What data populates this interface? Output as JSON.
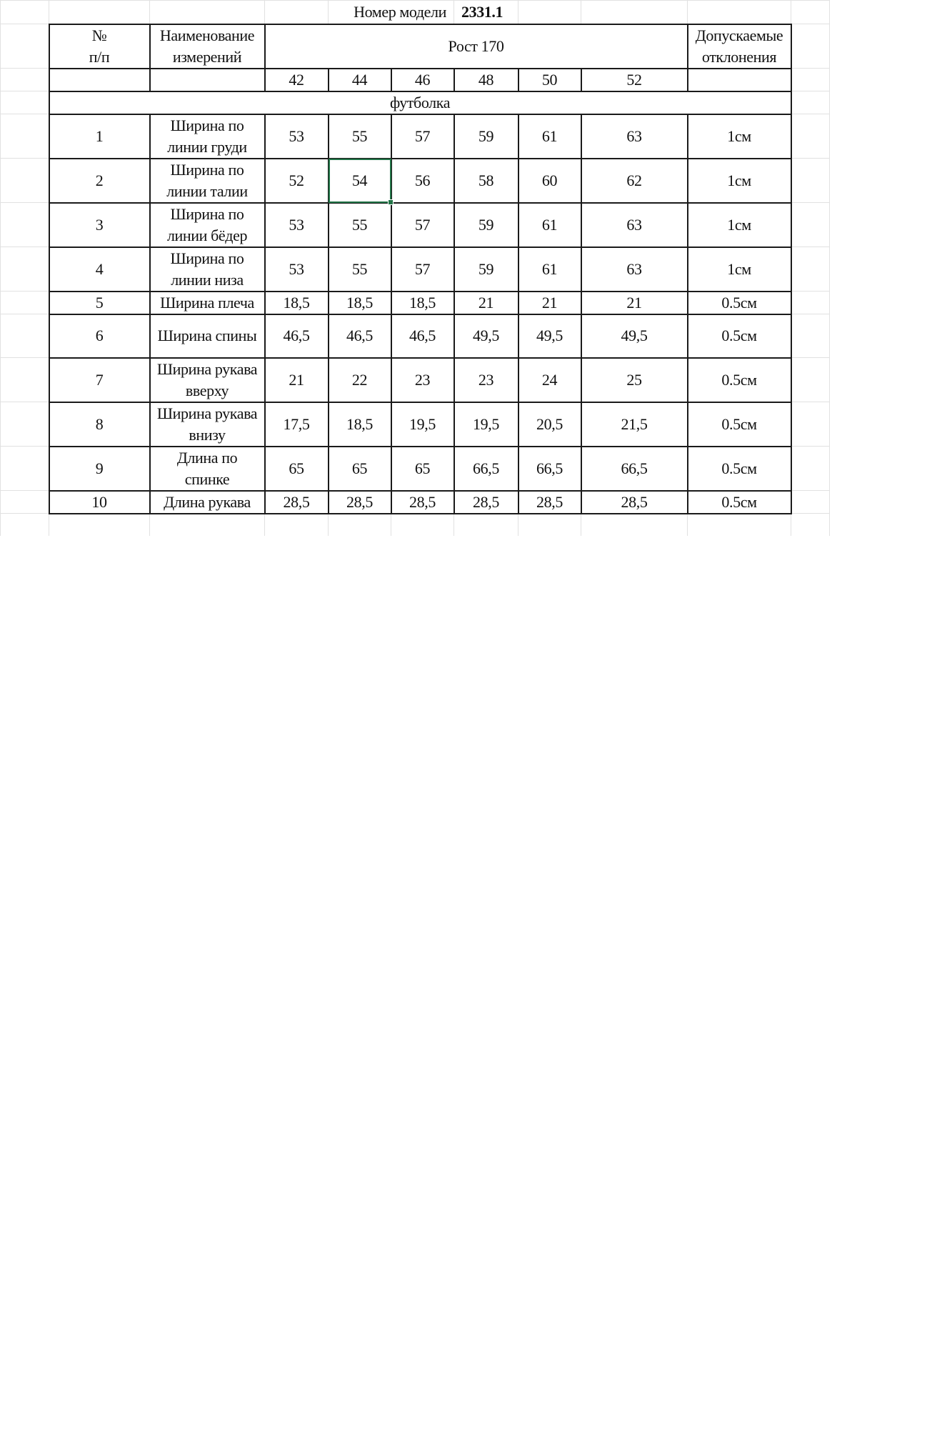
{
  "title": {
    "label": "Номер модели",
    "model": "2331.1"
  },
  "header": {
    "num_line1": "№",
    "num_line2": "п/п",
    "name_line1": "Наименование",
    "name_line2": "измерений",
    "height": "Рост 170",
    "tol_line1": "Допускаемые",
    "tol_line2": "отклонения"
  },
  "sizes": [
    "42",
    "44",
    "46",
    "48",
    "50",
    "52"
  ],
  "section": "футболка",
  "rows": [
    {
      "n": "1",
      "name1": "Ширина по",
      "name2": "линии груди",
      "v": [
        "53",
        "55",
        "57",
        "59",
        "61",
        "63"
      ],
      "tol": "1см"
    },
    {
      "n": "2",
      "name1": "Ширина по",
      "name2": "линии талии",
      "v": [
        "52",
        "54",
        "56",
        "58",
        "60",
        "62"
      ],
      "tol": "1см"
    },
    {
      "n": "3",
      "name1": "Ширина по",
      "name2": "линии бёдер",
      "v": [
        "53",
        "55",
        "57",
        "59",
        "61",
        "63"
      ],
      "tol": "1см"
    },
    {
      "n": "4",
      "name1": "Ширина по",
      "name2": "линии низа",
      "v": [
        "53",
        "55",
        "57",
        "59",
        "61",
        "63"
      ],
      "tol": "1см"
    },
    {
      "n": "5",
      "name1": "Ширина плеча",
      "name2": "",
      "v": [
        "18,5",
        "18,5",
        "18,5",
        "21",
        "21",
        "21"
      ],
      "tol": "0.5см"
    },
    {
      "n": "6",
      "name1": "Ширина спины",
      "name2": "",
      "v": [
        "46,5",
        "46,5",
        "46,5",
        "49,5",
        "49,5",
        "49,5"
      ],
      "tol": "0.5см"
    },
    {
      "n": "7",
      "name1": "Ширина рукава",
      "name2": "вверху",
      "v": [
        "21",
        "22",
        "23",
        "23",
        "24",
        "25"
      ],
      "tol": "0.5см"
    },
    {
      "n": "8",
      "name1": "Ширина рукава",
      "name2": "внизу",
      "v": [
        "17,5",
        "18,5",
        "19,5",
        "19,5",
        "20,5",
        "21,5"
      ],
      "tol": "0.5см"
    },
    {
      "n": "9",
      "name1": "Длина по",
      "name2": "спинке",
      "v": [
        "65",
        "65",
        "65",
        "66,5",
        "66,5",
        "66,5"
      ],
      "tol": "0.5см"
    },
    {
      "n": "10",
      "name1": "Длина рукава",
      "name2": "",
      "v": [
        "28,5",
        "28,5",
        "28,5",
        "28,5",
        "28,5",
        "28,5"
      ],
      "tol": "0.5см"
    }
  ],
  "selection": {
    "row": 2,
    "size": "44",
    "color": "#217346"
  }
}
